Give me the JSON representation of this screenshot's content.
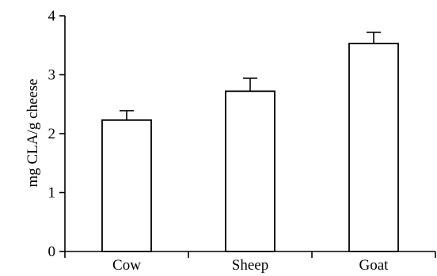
{
  "chart_data": {
    "type": "bar",
    "title": "",
    "xlabel": "",
    "ylabel": "mg CLA/g cheese",
    "categories": [
      "Cow",
      "Sheep",
      "Goat"
    ],
    "values": [
      2.23,
      2.72,
      3.53
    ],
    "error_upper": [
      0.16,
      0.22,
      0.19
    ],
    "ylim": [
      0,
      4
    ],
    "yticks": [
      "0",
      "1",
      "2",
      "3",
      "4"
    ],
    "grid": false,
    "legend": "none",
    "bar_fill": "#ffffff",
    "bar_stroke": "#000000"
  }
}
